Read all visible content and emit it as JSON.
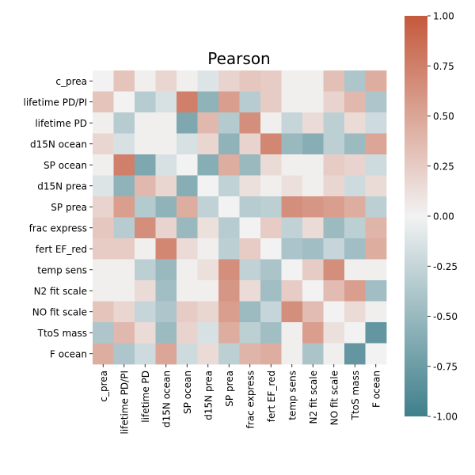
{
  "chart_data": {
    "type": "heatmap",
    "title": "Pearson",
    "labels": [
      "c_prea",
      "lifetime PD/PI",
      "lifetime PD",
      "d15N ocean",
      "SP ocean",
      "d15N prea",
      "SP prea",
      "frac express",
      "fert EF_red",
      "temp sens",
      "N2 fit scale",
      "NO fit scale",
      "TtoS mass",
      "F ocean"
    ],
    "values": [
      [
        0.0,
        0.3,
        0.02,
        0.18,
        0.02,
        -0.12,
        0.2,
        0.28,
        0.25,
        0.02,
        0.02,
        0.33,
        -0.38,
        0.45
      ],
      [
        0.3,
        0.0,
        -0.33,
        -0.15,
        0.75,
        -0.55,
        0.55,
        -0.33,
        0.25,
        0.02,
        0.02,
        0.2,
        0.38,
        -0.38
      ],
      [
        0.02,
        -0.33,
        0.02,
        0.02,
        -0.65,
        0.38,
        -0.35,
        0.65,
        0.02,
        -0.25,
        0.15,
        -0.3,
        0.15,
        -0.2
      ],
      [
        0.18,
        -0.15,
        0.02,
        0.02,
        -0.15,
        0.18,
        -0.55,
        0.2,
        0.7,
        -0.5,
        -0.6,
        -0.3,
        -0.48,
        0.5
      ],
      [
        0.02,
        0.75,
        -0.65,
        -0.15,
        0.0,
        -0.6,
        0.45,
        -0.5,
        0.15,
        0.02,
        0.02,
        0.25,
        0.2,
        -0.2
      ],
      [
        -0.12,
        -0.55,
        0.38,
        0.18,
        -0.6,
        0.0,
        -0.28,
        0.12,
        0.02,
        0.12,
        0.02,
        0.18,
        -0.2,
        0.15
      ],
      [
        0.2,
        0.55,
        -0.35,
        -0.55,
        0.45,
        -0.28,
        0.0,
        -0.33,
        -0.3,
        0.65,
        0.6,
        0.55,
        0.45,
        -0.3
      ],
      [
        0.28,
        -0.33,
        0.65,
        0.2,
        -0.5,
        0.12,
        -0.33,
        0.0,
        0.25,
        -0.28,
        0.15,
        -0.48,
        -0.3,
        0.4
      ],
      [
        0.25,
        0.25,
        0.02,
        0.7,
        0.15,
        0.02,
        -0.3,
        0.25,
        0.0,
        -0.4,
        -0.45,
        -0.25,
        -0.45,
        0.45
      ],
      [
        0.02,
        0.02,
        -0.3,
        -0.5,
        0.02,
        0.12,
        0.65,
        -0.28,
        -0.4,
        0.0,
        0.25,
        0.65,
        0.02,
        0.02
      ],
      [
        0.02,
        0.02,
        0.15,
        -0.45,
        0.02,
        0.02,
        0.6,
        0.15,
        -0.45,
        0.25,
        0.0,
        0.35,
        0.55,
        -0.45
      ],
      [
        0.3,
        0.18,
        -0.25,
        -0.38,
        0.25,
        0.18,
        0.55,
        -0.48,
        -0.25,
        0.65,
        0.35,
        0.0,
        0.15,
        0.02
      ],
      [
        -0.38,
        0.38,
        0.15,
        -0.48,
        0.2,
        -0.15,
        0.45,
        -0.3,
        -0.45,
        0.02,
        0.55,
        0.12,
        0.0,
        -0.8
      ],
      [
        0.45,
        -0.38,
        -0.2,
        0.5,
        -0.2,
        0.15,
        -0.3,
        0.4,
        0.45,
        0.02,
        -0.4,
        0.02,
        -0.8,
        0.0
      ]
    ],
    "vmin": -1.0,
    "vmax": 1.0,
    "colorbar_ticks": [
      "1.00",
      "0.75",
      "0.50",
      "0.25",
      "0.00",
      "-0.25",
      "-0.50",
      "-0.75",
      "-1.00"
    ],
    "colormap": {
      "low": "#3f7f8c",
      "mid": "#f2f2f2",
      "high": "#c4593c"
    }
  }
}
